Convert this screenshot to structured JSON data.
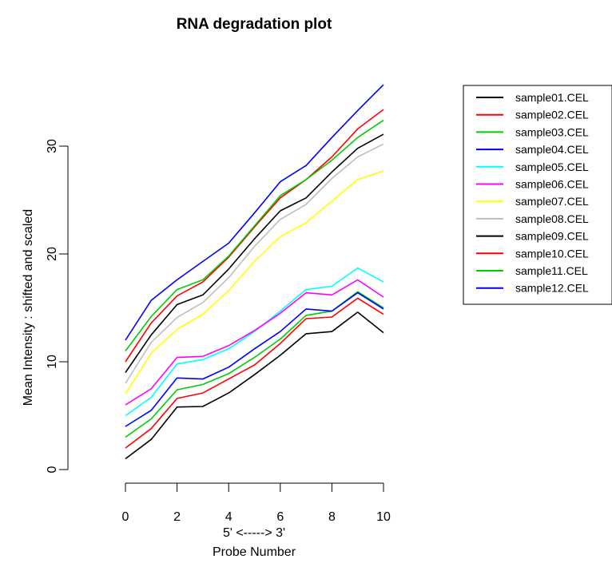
{
  "chart_data": {
    "type": "line",
    "title": "RNA degradation plot",
    "xlabel": "5' <-----> 3'",
    "xlabel2": "Probe Number",
    "ylabel": "Mean Intensity : shifted and scaled",
    "xlim": [
      0,
      10
    ],
    "ylim": [
      0,
      36
    ],
    "x_ticks": [
      "0",
      "2",
      "4",
      "6",
      "8",
      "10"
    ],
    "y_ticks": [
      "0",
      "10",
      "20",
      "30"
    ],
    "grid": false,
    "legend_position": "top-right",
    "x": [
      0,
      1,
      2,
      3,
      4,
      5,
      6,
      7,
      8,
      9,
      10
    ],
    "series": [
      {
        "name": "sample01.CEL",
        "color": "#000000",
        "values": [
          1.0,
          2.8,
          5.8,
          5.85,
          7.1,
          8.8,
          10.6,
          12.6,
          12.8,
          14.6,
          12.7
        ]
      },
      {
        "name": "sample02.CEL",
        "color": "#ff0000",
        "values": [
          2.0,
          3.8,
          6.6,
          7.1,
          8.4,
          9.7,
          11.7,
          14.0,
          14.15,
          15.9,
          14.4
        ]
      },
      {
        "name": "sample03.CEL",
        "color": "#00cd00",
        "values": [
          3.0,
          4.7,
          7.4,
          7.9,
          8.9,
          10.4,
          12.1,
          14.3,
          14.7,
          16.5,
          15.0
        ]
      },
      {
        "name": "sample04.CEL",
        "color": "#0000ff",
        "values": [
          4.0,
          5.5,
          8.5,
          8.4,
          9.5,
          11.2,
          12.8,
          14.9,
          14.7,
          16.4,
          14.9
        ]
      },
      {
        "name": "sample05.CEL",
        "color": "#00ffff",
        "values": [
          5.0,
          6.7,
          9.8,
          10.2,
          11.2,
          12.8,
          14.7,
          16.7,
          17.0,
          18.7,
          17.4
        ]
      },
      {
        "name": "sample06.CEL",
        "color": "#ff00ff",
        "values": [
          6.0,
          7.5,
          10.4,
          10.5,
          11.5,
          12.9,
          14.5,
          16.4,
          16.2,
          17.6,
          16.0
        ]
      },
      {
        "name": "sample07.CEL",
        "color": "#ffff00",
        "values": [
          7.0,
          10.8,
          13.0,
          14.4,
          16.6,
          19.3,
          21.6,
          22.9,
          24.9,
          26.9,
          27.7
        ]
      },
      {
        "name": "sample08.CEL",
        "color": "#bebebe",
        "values": [
          8.0,
          11.8,
          14.1,
          15.5,
          17.8,
          20.7,
          23.2,
          24.6,
          27.0,
          29.0,
          30.2
        ]
      },
      {
        "name": "sample09.CEL",
        "color": "#000000",
        "values": [
          9.0,
          12.5,
          15.3,
          16.2,
          18.6,
          21.4,
          24.0,
          25.2,
          27.6,
          29.8,
          31.1
        ]
      },
      {
        "name": "sample10.CEL",
        "color": "#ff0000",
        "values": [
          10.0,
          13.6,
          16.1,
          17.4,
          19.7,
          22.5,
          25.2,
          26.9,
          29.0,
          31.6,
          33.4
        ]
      },
      {
        "name": "sample11.CEL",
        "color": "#00cd00",
        "values": [
          11.0,
          14.2,
          16.7,
          17.6,
          19.8,
          22.6,
          25.4,
          26.9,
          28.7,
          30.8,
          32.4
        ]
      },
      {
        "name": "sample12.CEL",
        "color": "#0000ff",
        "values": [
          12.0,
          15.7,
          17.6,
          19.3,
          21.0,
          23.8,
          26.7,
          28.2,
          30.8,
          33.3,
          35.7
        ]
      }
    ]
  }
}
